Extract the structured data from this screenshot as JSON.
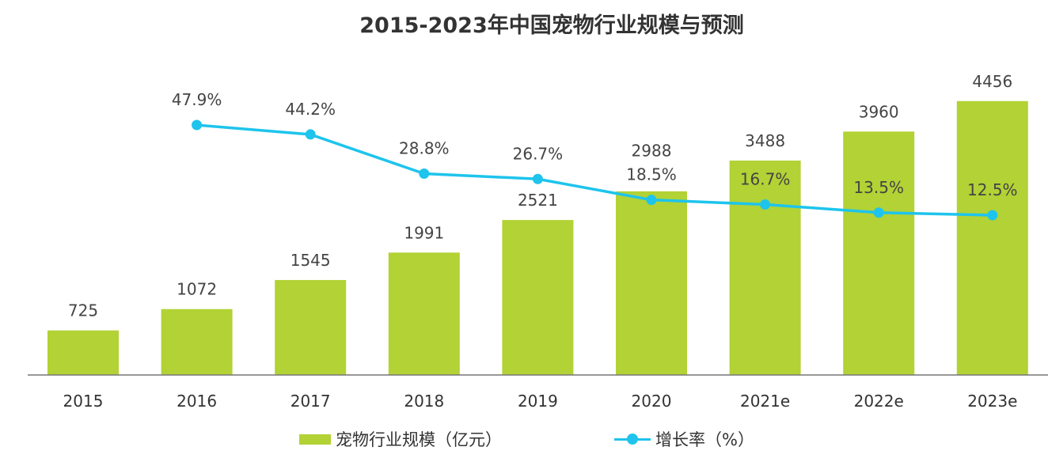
{
  "chart_data": {
    "type": "bar+line",
    "title": "2015-2023年中国宠物行业规模与预测",
    "categories": [
      "2015",
      "2016",
      "2017",
      "2018",
      "2019",
      "2020",
      "2021e",
      "2022e",
      "2023e"
    ],
    "series": [
      {
        "name": "宠物行业规模（亿元）",
        "type": "bar",
        "axis": "left",
        "color": "#B2D235",
        "values": [
          725,
          1072,
          1545,
          1991,
          2521,
          2988,
          3488,
          3960,
          4456
        ]
      },
      {
        "name": "增长率（%）",
        "type": "line",
        "axis": "right",
        "color": "#1EC4EC",
        "values": [
          null,
          47.9,
          44.2,
          28.8,
          26.7,
          18.5,
          16.7,
          13.5,
          12.5
        ],
        "labels": [
          "",
          "47.9%",
          "44.2%",
          "28.8%",
          "26.7%",
          "18.5%",
          "16.7%",
          "13.5%",
          "12.5%"
        ]
      }
    ],
    "legend": "bottom",
    "grid": false
  }
}
